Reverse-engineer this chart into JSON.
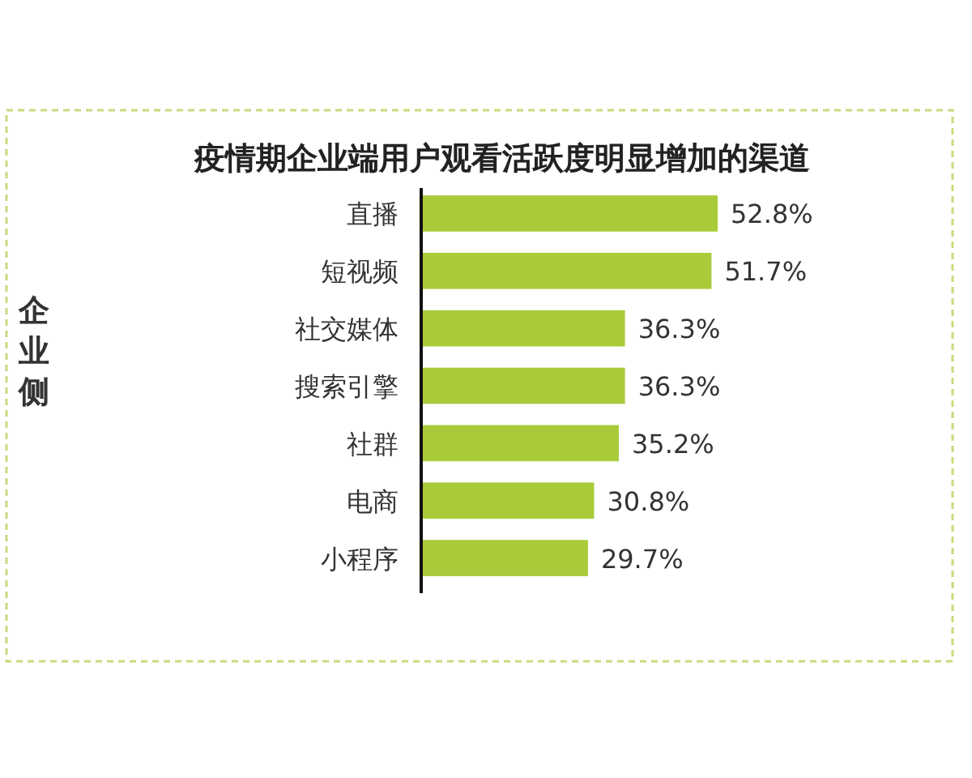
{
  "chart_data": {
    "type": "bar",
    "orientation": "horizontal",
    "title": "疫情期企业端用户观看活跃度明显增加的渠道",
    "annotations": [
      "企业侧"
    ],
    "categories": [
      "直播",
      "短视频",
      "社交媒体",
      "搜索引擎",
      "社群",
      "电商",
      "小程序"
    ],
    "values": [
      52.8,
      51.7,
      36.3,
      36.3,
      35.2,
      30.8,
      29.7
    ],
    "value_labels": [
      "52.8%",
      "51.7%",
      "36.3%",
      "36.3%",
      "35.2%",
      "30.8%",
      "29.7%"
    ],
    "color": "#a9cb3a"
  }
}
